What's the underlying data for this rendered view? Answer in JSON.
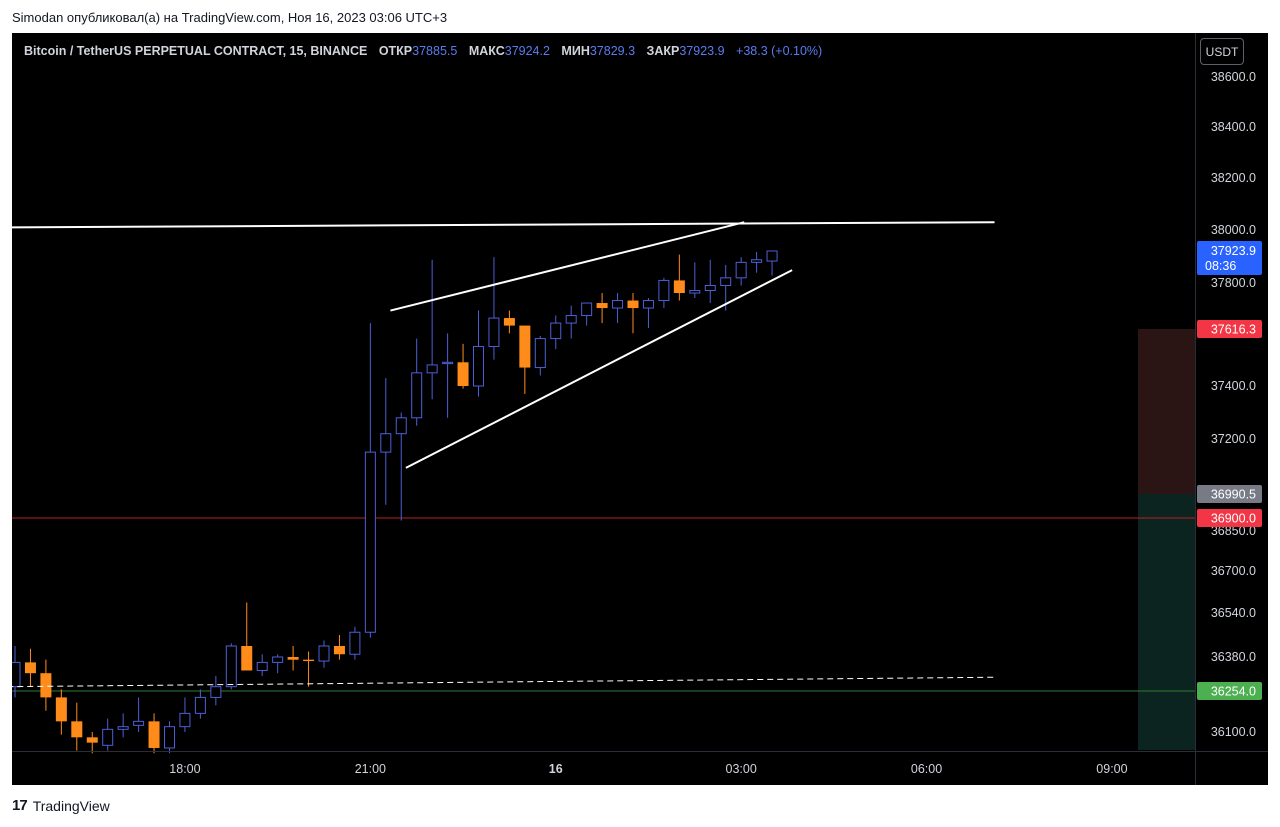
{
  "publisher_line": "Simodan опубликовал(а) на TradingView.com, Ноя 16, 2023 03:06 UTC+3",
  "footer_brand": "TradingView",
  "currency_button": "USDT",
  "header": {
    "symbol": "Bitcoin / TetherUS PERPETUAL CONTRACT, 15, BINANCE",
    "open_label": "ОТКР",
    "open_value": "37885.5",
    "high_label": "МАКС",
    "high_value": "37924.2",
    "low_label": "МИН",
    "low_value": "37829.3",
    "close_label": "ЗАКР",
    "close_value": "37923.9",
    "change": "+38.3 (+0.10%)"
  },
  "colors": {
    "background": "#000000",
    "up_candle_border": "#4d5fd8",
    "down_candle": "#ff8c1a",
    "trendline": "#ffffff",
    "stop_line": "#b22222",
    "target_line": "#2e7d32",
    "stop_zone": "#2a1414",
    "target_zone": "#0c2420"
  },
  "chart_data": {
    "type": "candlestick",
    "symbol": "Bitcoin / TetherUS PERPETUAL CONTRACT",
    "interval": "15",
    "exchange": "BINANCE",
    "x_tick_labels": [
      "18:00",
      "21:00",
      "16",
      "03:00",
      "06:00",
      "09:00"
    ],
    "y_ticks": [
      38600.0,
      38400.0,
      38200.0,
      38000.0,
      37800.0,
      37400.0,
      37200.0,
      36850.0,
      36700.0,
      36540.0,
      36380.0,
      36100.0
    ],
    "y_tick_labels": [
      "38600.0",
      "38400.0",
      "38200.0",
      "38000.0",
      "37800.0",
      "37400.0",
      "37200.0",
      "36850.0",
      "36700.0",
      "36540.0",
      "36380.0",
      "36100.0"
    ],
    "ylim": [
      36000,
      38720
    ],
    "last_price": {
      "value": 37923.9,
      "label": "37923.9",
      "countdown": "08:36",
      "color": "#2962ff"
    },
    "price_labels": [
      {
        "value": 37616.3,
        "label": "37616.3",
        "color": "#f23645"
      },
      {
        "value": 36990.5,
        "label": "36990.5",
        "color": "#787b86"
      },
      {
        "value": 36900.0,
        "label": "36900.0",
        "color": "#f23645"
      },
      {
        "value": 36254.0,
        "label": "36254.0",
        "color": "#4caf50"
      }
    ],
    "candles": [
      [
        36270,
        36420,
        36230,
        36360
      ],
      [
        36360,
        36410,
        36270,
        36320
      ],
      [
        36320,
        36370,
        36180,
        36230
      ],
      [
        36230,
        36260,
        36090,
        36140
      ],
      [
        36140,
        36210,
        36030,
        36080
      ],
      [
        36080,
        36100,
        36020,
        36060
      ],
      [
        36050,
        36150,
        36030,
        36110
      ],
      [
        36110,
        36170,
        36080,
        36120
      ],
      [
        36125,
        36230,
        36100,
        36140
      ],
      [
        36140,
        36170,
        36020,
        36040
      ],
      [
        36040,
        36140,
        36020,
        36120
      ],
      [
        36120,
        36230,
        36100,
        36170
      ],
      [
        36170,
        36260,
        36150,
        36230
      ],
      [
        36230,
        36310,
        36200,
        36270
      ],
      [
        36270,
        36430,
        36260,
        36420
      ],
      [
        36420,
        36580,
        36340,
        36330
      ],
      [
        36330,
        36390,
        36310,
        36360
      ],
      [
        36360,
        36390,
        36320,
        36380
      ],
      [
        36380,
        36420,
        36330,
        36370
      ],
      [
        36370,
        36400,
        36270,
        36365
      ],
      [
        36365,
        36440,
        36340,
        36420
      ],
      [
        36420,
        36460,
        36370,
        36390
      ],
      [
        36390,
        36490,
        36370,
        36470
      ],
      [
        36470,
        37640,
        36450,
        37150
      ],
      [
        37150,
        37430,
        36950,
        37220
      ],
      [
        37220,
        37300,
        36890,
        37280
      ],
      [
        37280,
        37580,
        37250,
        37450
      ],
      [
        37450,
        37890,
        37350,
        37480
      ],
      [
        37485,
        37600,
        37280,
        37490
      ],
      [
        37490,
        37560,
        37390,
        37400
      ],
      [
        37400,
        37690,
        37360,
        37550
      ],
      [
        37550,
        37900,
        37500,
        37660
      ],
      [
        37660,
        37690,
        37600,
        37630
      ],
      [
        37630,
        37630,
        37370,
        37470
      ],
      [
        37470,
        37590,
        37440,
        37580
      ],
      [
        37580,
        37670,
        37540,
        37640
      ],
      [
        37640,
        37710,
        37580,
        37670
      ],
      [
        37670,
        37720,
        37630,
        37720
      ],
      [
        37720,
        37760,
        37640,
        37700
      ],
      [
        37700,
        37760,
        37640,
        37730
      ],
      [
        37730,
        37760,
        37600,
        37700
      ],
      [
        37700,
        37740,
        37620,
        37730
      ],
      [
        37730,
        37820,
        37700,
        37810
      ],
      [
        37810,
        37910,
        37730,
        37760
      ],
      [
        37760,
        37880,
        37740,
        37770
      ],
      [
        37770,
        37890,
        37720,
        37790
      ],
      [
        37790,
        37870,
        37690,
        37820
      ],
      [
        37820,
        37900,
        37790,
        37880
      ],
      [
        37880,
        37920,
        37840,
        37890
      ],
      [
        37885,
        37924,
        37829,
        37924
      ]
    ],
    "trendlines": [
      {
        "from": [
          -0.5,
          38010
        ],
        "to": [
          63.4,
          38030
        ]
      },
      {
        "from": [
          24.3,
          37690
        ],
        "to": [
          47.2,
          38030
        ]
      },
      {
        "from": [
          25.3,
          37090
        ],
        "to": [
          50.3,
          37850
        ]
      },
      {
        "from": [
          -0.5,
          36270
        ],
        "to": [
          63.4,
          36305
        ],
        "dashed": true
      }
    ]
  }
}
